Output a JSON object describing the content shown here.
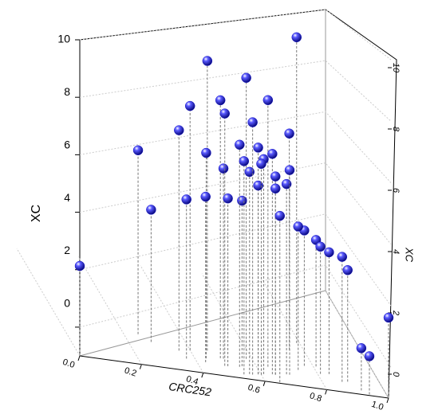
{
  "chart_data": {
    "type": "scatter3d",
    "xlabel": "CRC252",
    "ylabel": "XC",
    "zlabel": "XC",
    "color": "#1414c8",
    "x": [
      0.79,
      0.46,
      0.58,
      0.4,
      0.49,
      0.64,
      0.49,
      0.36,
      0.57,
      0.75,
      0.25,
      0.54,
      0.44,
      0.59,
      0.64,
      0.54,
      0.61,
      0.5,
      0.6,
      0.56,
      0.65,
      0.7,
      0.59,
      0.65,
      0.69,
      0.37,
      0.43,
      0.5,
      0.55,
      0.28,
      0.65,
      0.74,
      0.77,
      0.81,
      0.81,
      0.84,
      0.87,
      0.89,
      0,
      1,
      0.92,
      0.94
    ],
    "y": [
      4.3,
      2.3,
      2.0,
      2.1,
      1.7,
      1.5,
      1.0,
      1.9,
      0.5,
      3.5,
      3.0,
      1.1,
      1.5,
      0.6,
      0.8,
      0.4,
      0.7,
      1.7,
      0.6,
      0.5,
      0.8,
      1.0,
      0.6,
      0.8,
      1.0,
      1.2,
      1.1,
      1.0,
      1.2,
      2.4,
      0.1,
      1.6,
      2.1,
      2.2,
      1.5,
      1.6,
      1.0,
      1.1,
      0,
      0,
      0.4,
      0.1
    ],
    "z": [
      9.64,
      9.08,
      8.78,
      7.5,
      7.98,
      8.28,
      7.78,
      6.67,
      7.78,
      6.53,
      5.4,
      6.73,
      6.15,
      6.89,
      6.67,
      6.42,
      6.48,
      5.62,
      6.34,
      6.04,
      5.9,
      6.12,
      5.57,
      5.48,
      5.62,
      4.54,
      4.76,
      4.84,
      4.76,
      3.6,
      4.79,
      3.99,
      3.71,
      3.4,
      3.43,
      3.24,
      3.35,
      2.88,
      2.13,
      1.8,
      0.47,
      0.33
    ],
    "xlim": [
      0,
      1
    ],
    "ylim": [
      0,
      10
    ],
    "zlim": [
      -1,
      10
    ],
    "xticks": [
      {
        "value": 0,
        "label": "0.0"
      },
      {
        "value": 0.2,
        "label": "0.2"
      },
      {
        "value": 0.4,
        "label": "0.4"
      },
      {
        "value": 0.6,
        "label": "0.6"
      },
      {
        "value": 0.8,
        "label": "0.8"
      },
      {
        "value": 1,
        "label": "1.0"
      }
    ],
    "yticks": [
      0,
      2,
      4,
      6,
      8,
      10
    ],
    "zticks": [
      0,
      2,
      4,
      6,
      8,
      10
    ],
    "grid": true
  }
}
